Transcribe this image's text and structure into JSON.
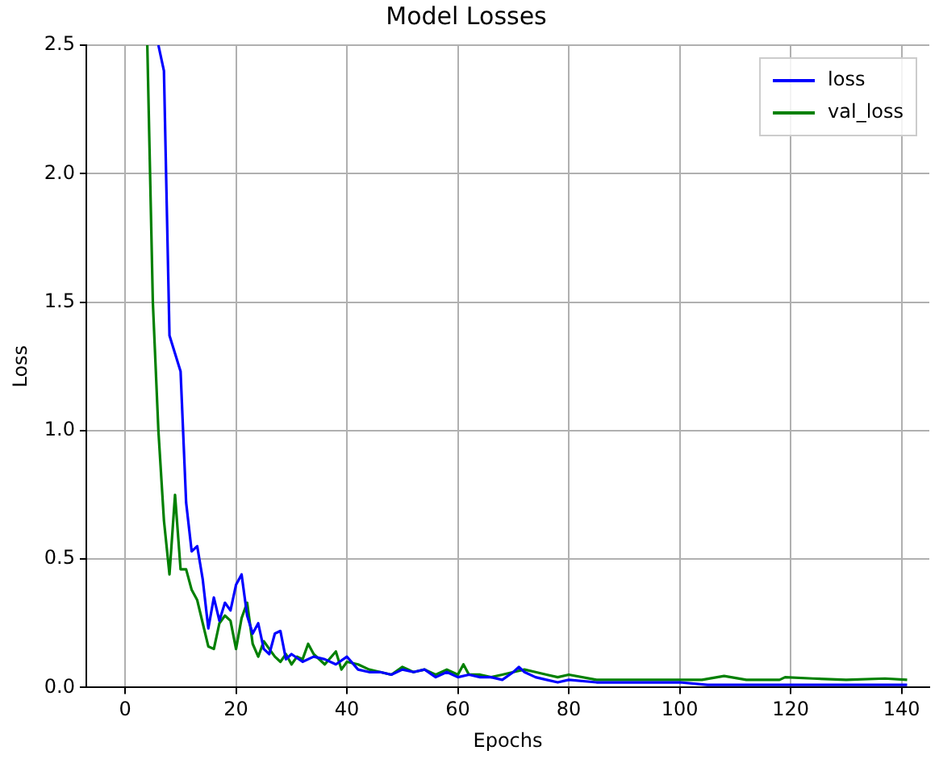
{
  "chart_data": {
    "type": "line",
    "title": "Model Losses",
    "xlabel": "Epochs",
    "ylabel": "Loss",
    "xlim": [
      -7,
      145
    ],
    "xticks": [
      0,
      20,
      40,
      60,
      80,
      100,
      120,
      140
    ],
    "ylim": [
      0,
      2.5
    ],
    "yticks": [
      {
        "value": 0,
        "label": "0.0"
      },
      {
        "value": 0.5,
        "label": "0.5"
      },
      {
        "value": 1,
        "label": "1.0"
      },
      {
        "value": 1.5,
        "label": "1.5"
      },
      {
        "value": 2,
        "label": "2.0"
      },
      {
        "value": 2.5,
        "label": "2.5"
      }
    ],
    "grid": true,
    "legend": "top right",
    "series": [
      {
        "name": "loss",
        "color": "#0000ff",
        "x": [
          6,
          7,
          8,
          9,
          10,
          11,
          12,
          13,
          14,
          15,
          16,
          17,
          18,
          19,
          20,
          21,
          22,
          23,
          24,
          25,
          26,
          27,
          28,
          29,
          30,
          32,
          34,
          36,
          38,
          40,
          42,
          44,
          46,
          48,
          50,
          52,
          54,
          56,
          58,
          60,
          62,
          64,
          66,
          68,
          70,
          71,
          72,
          74,
          76,
          78,
          80,
          85,
          90,
          95,
          100,
          105,
          110,
          115,
          120,
          125,
          130,
          135,
          141
        ],
        "values": [
          2.5,
          2.4,
          1.37,
          1.3,
          1.23,
          0.72,
          0.53,
          0.55,
          0.42,
          0.23,
          0.35,
          0.26,
          0.33,
          0.3,
          0.4,
          0.44,
          0.28,
          0.21,
          0.25,
          0.15,
          0.13,
          0.21,
          0.22,
          0.11,
          0.13,
          0.1,
          0.12,
          0.11,
          0.09,
          0.12,
          0.07,
          0.06,
          0.06,
          0.05,
          0.07,
          0.06,
          0.07,
          0.04,
          0.06,
          0.04,
          0.05,
          0.04,
          0.04,
          0.03,
          0.06,
          0.08,
          0.06,
          0.04,
          0.03,
          0.02,
          0.03,
          0.02,
          0.02,
          0.02,
          0.02,
          0.01,
          0.01,
          0.01,
          0.01,
          0.01,
          0.01,
          0.01,
          0.01
        ]
      },
      {
        "name": "val_loss",
        "color": "#008000",
        "x": [
          4,
          5,
          6,
          7,
          8,
          9,
          10,
          11,
          12,
          13,
          14,
          15,
          16,
          17,
          18,
          19,
          20,
          21,
          22,
          23,
          24,
          25,
          26,
          27,
          28,
          29,
          30,
          31,
          32,
          33,
          34,
          36,
          38,
          39,
          40,
          42,
          44,
          46,
          48,
          50,
          52,
          54,
          56,
          58,
          60,
          61,
          62,
          64,
          66,
          68,
          70,
          72,
          74,
          76,
          78,
          80,
          85,
          90,
          95,
          100,
          104,
          108,
          112,
          118,
          119,
          124,
          130,
          137,
          141
        ],
        "values": [
          2.5,
          1.5,
          1.0,
          0.65,
          0.44,
          0.75,
          0.46,
          0.46,
          0.38,
          0.34,
          0.25,
          0.16,
          0.15,
          0.25,
          0.28,
          0.26,
          0.15,
          0.27,
          0.33,
          0.17,
          0.12,
          0.18,
          0.15,
          0.12,
          0.1,
          0.13,
          0.09,
          0.12,
          0.11,
          0.17,
          0.13,
          0.09,
          0.14,
          0.07,
          0.1,
          0.09,
          0.07,
          0.06,
          0.05,
          0.08,
          0.06,
          0.07,
          0.05,
          0.07,
          0.05,
          0.09,
          0.05,
          0.05,
          0.04,
          0.05,
          0.06,
          0.07,
          0.06,
          0.05,
          0.04,
          0.05,
          0.03,
          0.03,
          0.03,
          0.03,
          0.03,
          0.045,
          0.03,
          0.03,
          0.04,
          0.035,
          0.03,
          0.035,
          0.03
        ]
      }
    ]
  }
}
